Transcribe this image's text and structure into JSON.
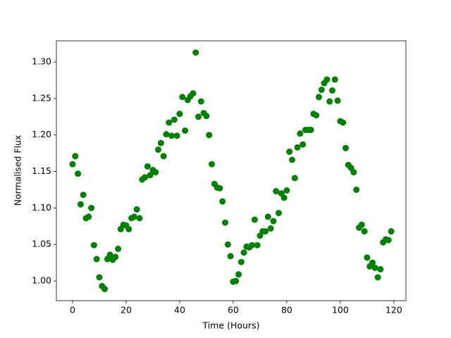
{
  "chart_data": {
    "type": "scatter",
    "x_label": "Time (Hours)",
    "y_label": "Normalised Flux",
    "color": "#008000",
    "x": [
      0,
      1,
      2,
      3,
      4,
      5,
      6,
      7,
      8,
      9,
      10,
      11,
      12,
      13,
      14,
      15,
      16,
      17,
      18,
      19,
      20,
      21,
      22,
      23,
      24,
      25,
      26,
      27,
      28,
      29,
      30,
      31,
      32,
      33,
      34,
      35,
      36,
      37,
      38,
      39,
      40,
      41,
      42,
      43,
      44,
      45,
      46,
      47,
      48,
      49,
      50,
      51,
      52,
      53,
      54,
      55,
      56,
      57,
      58,
      59,
      60,
      61,
      62,
      63,
      64,
      65,
      66,
      67,
      68,
      69,
      70,
      71,
      72,
      73,
      74,
      75,
      76,
      77,
      78,
      79,
      80,
      81,
      82,
      83,
      84,
      85,
      86,
      87,
      88,
      89,
      90,
      91,
      92,
      93,
      94,
      95,
      96,
      97,
      98,
      99,
      100,
      101,
      102,
      103,
      104,
      105,
      106,
      107,
      108,
      109,
      110,
      111,
      112,
      113,
      114,
      115,
      116,
      117,
      118,
      119
    ],
    "values": [
      1.16,
      1.171,
      1.147,
      1.105,
      1.118,
      1.086,
      1.088,
      1.1,
      1.049,
      1.03,
      1.005,
      0.993,
      0.989,
      1.03,
      1.036,
      1.029,
      1.033,
      1.044,
      1.071,
      1.077,
      1.076,
      1.071,
      1.086,
      1.088,
      1.098,
      1.086,
      1.139,
      1.142,
      1.157,
      1.145,
      1.152,
      1.149,
      1.18,
      1.189,
      1.171,
      1.201,
      1.217,
      1.199,
      1.221,
      1.199,
      1.229,
      1.252,
      1.206,
      1.248,
      1.253,
      1.257,
      1.313,
      1.225,
      1.246,
      1.23,
      1.226,
      1.2,
      1.16,
      1.133,
      1.128,
      1.127,
      1.109,
      1.08,
      1.05,
      1.034,
      0.999,
      1.0,
      1.009,
      1.026,
      1.039,
      1.047,
      1.046,
      1.049,
      1.084,
      1.049,
      1.062,
      1.068,
      1.068,
      1.088,
      1.072,
      1.082,
      1.123,
      1.093,
      1.12,
      1.114,
      1.124,
      1.177,
      1.166,
      1.141,
      1.183,
      1.202,
      1.187,
      1.207,
      1.207,
      1.207,
      1.229,
      1.227,
      1.252,
      1.262,
      1.271,
      1.276,
      1.246,
      1.261,
      1.276,
      1.247,
      1.219,
      1.217,
      1.182,
      1.159,
      1.155,
      1.149,
      1.125,
      1.073,
      1.077,
      1.068,
      1.032,
      1.02,
      1.025,
      1.018,
      1.005,
      1.016,
      1.053,
      1.057,
      1.056,
      1.068
    ],
    "xlim": [
      -6.05,
      124.5
    ],
    "ylim": [
      0.973,
      1.329
    ],
    "xticks": [
      0,
      20,
      40,
      60,
      80,
      100,
      120
    ],
    "yticks": [
      {
        "value": 1.0,
        "label": "1.00"
      },
      {
        "value": 1.05,
        "label": "1.05"
      },
      {
        "value": 1.1,
        "label": "1.10"
      },
      {
        "value": 1.15,
        "label": "1.15"
      },
      {
        "value": 1.2,
        "label": "1.20"
      },
      {
        "value": 1.25,
        "label": "1.25"
      },
      {
        "value": 1.3,
        "label": "1.30"
      }
    ]
  }
}
